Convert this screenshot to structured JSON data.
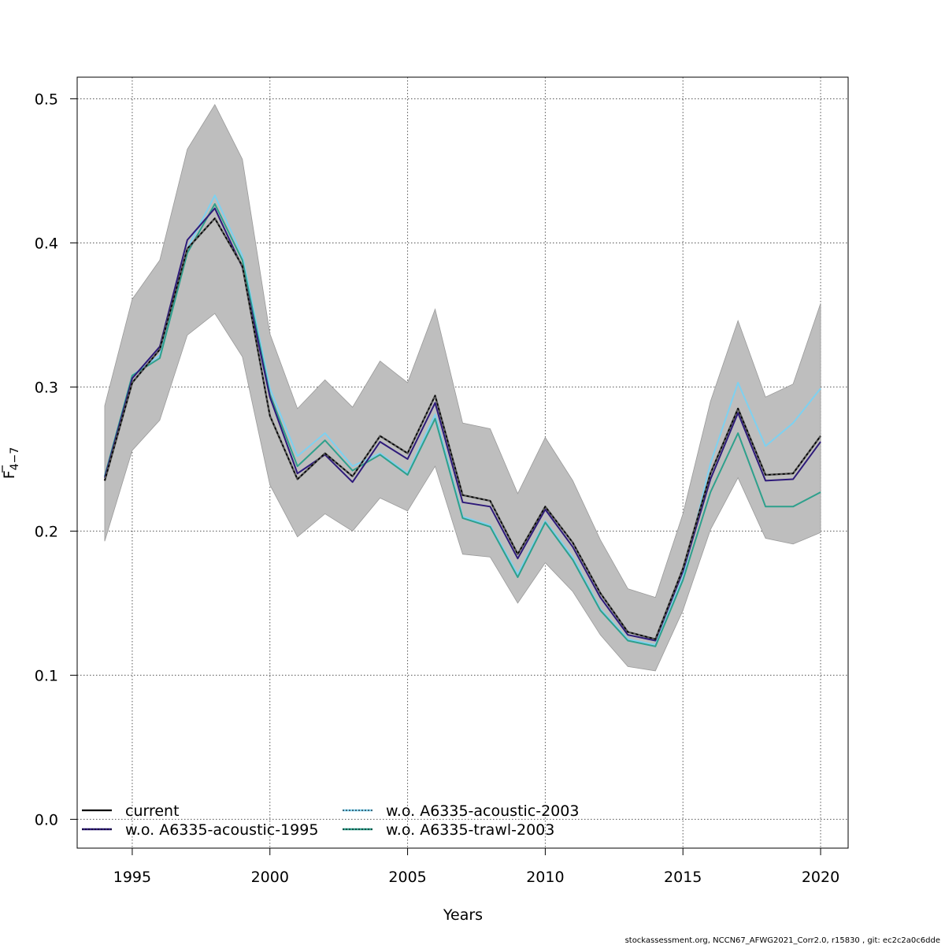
{
  "chart_data": {
    "type": "line",
    "title": "",
    "xlabel": "Years",
    "ylabel_main": "F",
    "ylabel_sub": "4−7",
    "xlim": [
      1993,
      2021
    ],
    "ylim": [
      -0.02,
      0.515
    ],
    "x_ticks": [
      1995,
      2000,
      2005,
      2010,
      2015,
      2020
    ],
    "x_tick_labels": [
      "1995",
      "2000",
      "2005",
      "2010",
      "2015",
      "2020"
    ],
    "y_ticks": [
      0.0,
      0.1,
      0.2,
      0.3,
      0.4,
      0.5
    ],
    "y_tick_labels": [
      "0.0",
      "0.1",
      "0.2",
      "0.3",
      "0.4",
      "0.5"
    ],
    "grid": true,
    "legend_position": "bottom-left",
    "band_color": "#bebebe",
    "x": [
      1994,
      1995,
      1996,
      1997,
      1998,
      1999,
      2000,
      2001,
      2002,
      2003,
      2004,
      2005,
      2006,
      2007,
      2008,
      2009,
      2010,
      2011,
      2012,
      2013,
      2014,
      2015,
      2016,
      2017,
      2018,
      2019,
      2020
    ],
    "band_upper": [
      0.287,
      0.361,
      0.388,
      0.465,
      0.496,
      0.458,
      0.337,
      0.285,
      0.305,
      0.286,
      0.318,
      0.303,
      0.354,
      0.275,
      0.271,
      0.226,
      0.265,
      0.235,
      0.194,
      0.16,
      0.154,
      0.212,
      0.29,
      0.346,
      0.293,
      0.302,
      0.358
    ],
    "band_lower": [
      0.193,
      0.256,
      0.277,
      0.336,
      0.351,
      0.321,
      0.232,
      0.196,
      0.212,
      0.2,
      0.223,
      0.214,
      0.245,
      0.184,
      0.182,
      0.15,
      0.178,
      0.158,
      0.128,
      0.106,
      0.103,
      0.145,
      0.201,
      0.237,
      0.195,
      0.191,
      0.199
    ],
    "series": [
      {
        "name": "current",
        "color": "#000000",
        "dash": "",
        "values": [
          0.235,
          0.303,
          0.326,
          0.396,
          0.417,
          0.384,
          0.28,
          0.236,
          0.254,
          0.238,
          0.266,
          0.254,
          0.294,
          0.225,
          0.221,
          0.184,
          0.217,
          0.192,
          0.157,
          0.13,
          0.125,
          0.174,
          0.24,
          0.285,
          0.239,
          0.24,
          0.266
        ]
      },
      {
        "name": "w.o. A6335-acoustic-1995",
        "color": "#2e1a7a",
        "dash": "",
        "values": [
          0.237,
          0.306,
          0.328,
          0.402,
          0.424,
          0.383,
          0.293,
          0.24,
          0.253,
          0.234,
          0.262,
          0.25,
          0.289,
          0.22,
          0.217,
          0.181,
          0.215,
          0.189,
          0.154,
          0.128,
          0.124,
          0.172,
          0.236,
          0.282,
          0.235,
          0.236,
          0.262
        ]
      },
      {
        "name": "w.o. A6335-acoustic-2003",
        "color": "#7ed1f0",
        "dash": "",
        "values": [
          0.238,
          0.308,
          0.322,
          0.396,
          0.433,
          0.391,
          0.299,
          0.252,
          0.268,
          0.245,
          0.254,
          0.24,
          0.281,
          0.21,
          0.204,
          0.17,
          0.207,
          0.182,
          0.146,
          0.125,
          0.121,
          0.168,
          0.247,
          0.303,
          0.259,
          0.275,
          0.299
        ]
      },
      {
        "name": "w.o. A6335-trawl-2003",
        "color": "#2ea08c",
        "dash": "",
        "values": [
          0.238,
          0.308,
          0.32,
          0.393,
          0.427,
          0.388,
          0.295,
          0.245,
          0.263,
          0.242,
          0.253,
          0.239,
          0.278,
          0.209,
          0.203,
          0.168,
          0.206,
          0.18,
          0.145,
          0.124,
          0.12,
          0.166,
          0.227,
          0.268,
          0.217,
          0.217,
          0.227
        ]
      }
    ],
    "legend_left": [
      "current",
      "w.o. A6335-acoustic-1995"
    ],
    "legend_right": [
      "w.o. A6335-acoustic-2003",
      "w.o. A6335-trawl-2003"
    ]
  },
  "footer": "stockassessment.org, NCCN67_AFWG2021_Corr2.0, r15830 , git: ec2c2a0c6dde"
}
